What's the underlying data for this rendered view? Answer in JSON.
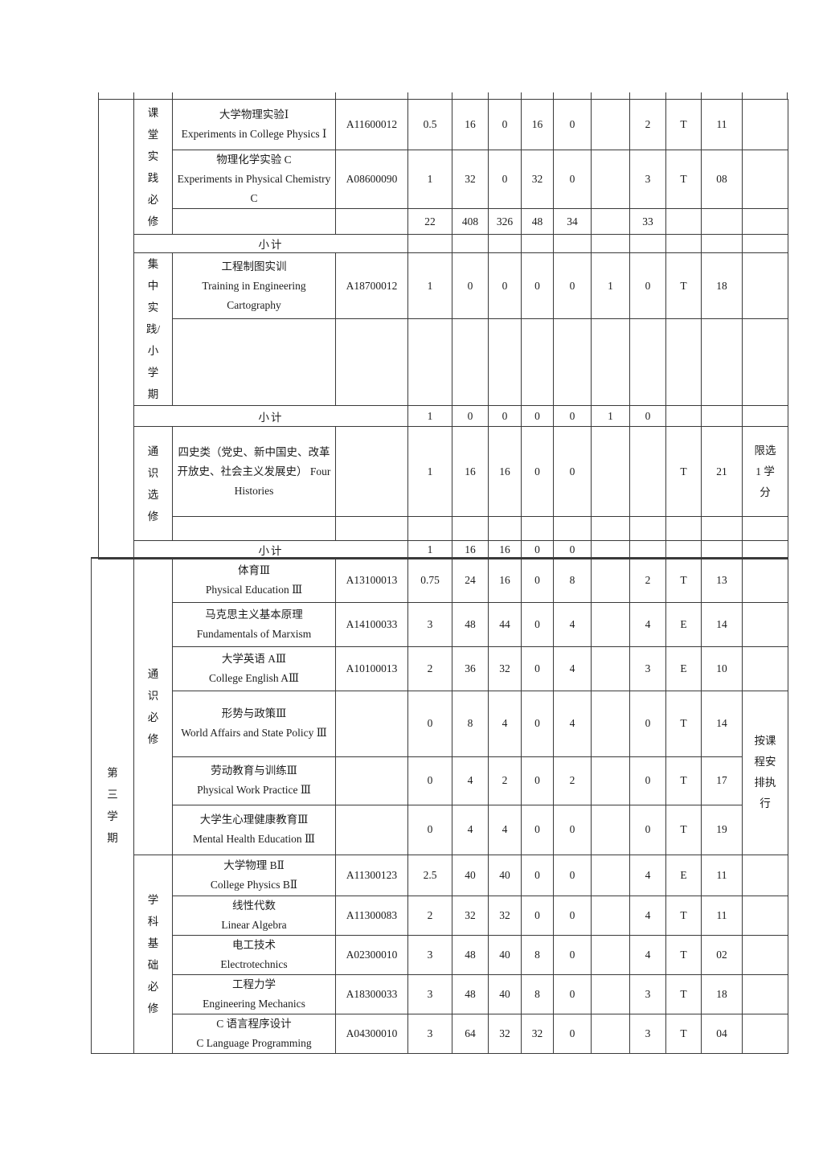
{
  "labels": {
    "subtotal": "小计"
  },
  "border_color": "#3a3a3a",
  "top": {
    "semester": "",
    "sections": [
      {
        "id": "classroom-practice-required",
        "category": "课\n堂\n实\n践\n必\n修",
        "courses": [
          {
            "name_zh": "大学物理实验Ⅰ",
            "name_en": "Experiments in College Physics Ⅰ",
            "code": "A11600012",
            "credits": "0.5",
            "total": "16",
            "lecture": "0",
            "experiment": "16",
            "practice": "0",
            "weeks": "",
            "weekly": "2",
            "exam": "T",
            "dept": "11",
            "note": ""
          },
          {
            "name_zh": "物理化学实验 C",
            "name_en": "Experiments in Physical Chemistry C",
            "code": "A08600090",
            "credits": "1",
            "total": "32",
            "lecture": "0",
            "experiment": "32",
            "practice": "0",
            "weeks": "",
            "weekly": "3",
            "exam": "T",
            "dept": "08",
            "note": ""
          }
        ],
        "totals": {
          "credits": "22",
          "total": "408",
          "lecture": "326",
          "experiment": "48",
          "practice": "34",
          "weeks": "",
          "weekly": "33",
          "exam": "",
          "dept": "",
          "note": ""
        },
        "subtotal": {
          "credits": "",
          "total": "",
          "lecture": "",
          "experiment": "",
          "practice": "",
          "weeks": "",
          "weekly": "",
          "exam": "",
          "dept": "",
          "note": ""
        }
      },
      {
        "id": "concentrated-practice-short-term",
        "category": "集\n中\n实\n践/\n小\n学\n期",
        "courses": [
          {
            "name_zh": "工程制图实训",
            "name_en": "Training in Engineering Cartography",
            "code": "A18700012",
            "credits": "1",
            "total": "0",
            "lecture": "0",
            "experiment": "0",
            "practice": "0",
            "weeks": "1",
            "weekly": "0",
            "exam": "T",
            "dept": "18",
            "note": ""
          }
        ],
        "subtotal": {
          "credits": "1",
          "total": "0",
          "lecture": "0",
          "experiment": "0",
          "practice": "0",
          "weeks": "1",
          "weekly": "0",
          "exam": "",
          "dept": "",
          "note": ""
        }
      },
      {
        "id": "general-elective",
        "category": "通\n识\n选\n修",
        "courses": [
          {
            "name_zh": "四史类（党史、新中国史、改革开放史、社会主义发展史）",
            "name_en": "Four Histories",
            "code": "",
            "credits": "1",
            "total": "16",
            "lecture": "16",
            "experiment": "0",
            "practice": "0",
            "weeks": "",
            "weekly": "",
            "exam": "T",
            "dept": "21",
            "note": "限选\n1 学\n分"
          }
        ],
        "subtotal": {
          "credits": "1",
          "total": "16",
          "lecture": "16",
          "experiment": "0",
          "practice": "0",
          "weeks": "",
          "weekly": "",
          "exam": "",
          "dept": "",
          "note": ""
        }
      }
    ]
  },
  "bottom": {
    "semester": "第\n三\n学\n期",
    "sections": [
      {
        "id": "general-required",
        "category": "通\n识\n必\n修",
        "merged_note": "按课\n程安\n排执\n行",
        "courses": [
          {
            "name_zh": "体育Ⅲ",
            "name_en": "Physical Education Ⅲ",
            "code": "A13100013",
            "credits": "0.75",
            "total": "24",
            "lecture": "16",
            "experiment": "0",
            "practice": "8",
            "weeks": "",
            "weekly": "2",
            "exam": "T",
            "dept": "13",
            "note": ""
          },
          {
            "name_zh": "马克思主义基本原理",
            "name_en": "Fundamentals of Marxism",
            "code": "A14100033",
            "credits": "3",
            "total": "48",
            "lecture": "44",
            "experiment": "0",
            "practice": "4",
            "weeks": "",
            "weekly": "4",
            "exam": "E",
            "dept": "14",
            "note": ""
          },
          {
            "name_zh": "大学英语 AⅢ",
            "name_en": "College English AⅢ",
            "code": "A10100013",
            "credits": "2",
            "total": "36",
            "lecture": "32",
            "experiment": "0",
            "practice": "4",
            "weeks": "",
            "weekly": "3",
            "exam": "E",
            "dept": "10",
            "note": ""
          },
          {
            "name_zh": "形势与政策Ⅲ",
            "name_en": "World Affairs and State Policy Ⅲ",
            "code": "",
            "credits": "0",
            "total": "8",
            "lecture": "4",
            "experiment": "0",
            "practice": "4",
            "weeks": "",
            "weekly": "0",
            "exam": "T",
            "dept": "14"
          },
          {
            "name_zh": "劳动教育与训练Ⅲ",
            "name_en": "Physical Work Practice Ⅲ",
            "code": "",
            "credits": "0",
            "total": "4",
            "lecture": "2",
            "experiment": "0",
            "practice": "2",
            "weeks": "",
            "weekly": "0",
            "exam": "T",
            "dept": "17"
          },
          {
            "name_zh": "大学生心理健康教育Ⅲ",
            "name_en": "Mental Health Education Ⅲ",
            "code": "",
            "credits": "0",
            "total": "4",
            "lecture": "4",
            "experiment": "0",
            "practice": "0",
            "weeks": "",
            "weekly": "0",
            "exam": "T",
            "dept": "19"
          }
        ]
      },
      {
        "id": "disciplinary-basic-required",
        "category": "学\n科\n基\n础\n必\n修",
        "courses": [
          {
            "name_zh": "大学物理 BⅡ",
            "name_en": "College Physics BⅡ",
            "code": "A11300123",
            "credits": "2.5",
            "total": "40",
            "lecture": "40",
            "experiment": "0",
            "practice": "0",
            "weeks": "",
            "weekly": "4",
            "exam": "E",
            "dept": "11",
            "note": ""
          },
          {
            "name_zh": "线性代数",
            "name_en": "Linear Algebra",
            "code": "A11300083",
            "credits": "2",
            "total": "32",
            "lecture": "32",
            "experiment": "0",
            "practice": "0",
            "weeks": "",
            "weekly": "4",
            "exam": "T",
            "dept": "11",
            "note": ""
          },
          {
            "name_zh": "电工技术",
            "name_en": "Electrotechnics",
            "code": "A02300010",
            "credits": "3",
            "total": "48",
            "lecture": "40",
            "experiment": "8",
            "practice": "0",
            "weeks": "",
            "weekly": "4",
            "exam": "T",
            "dept": "02",
            "note": ""
          },
          {
            "name_zh": "工程力学",
            "name_en": "Engineering Mechanics",
            "code": "A18300033",
            "credits": "3",
            "total": "48",
            "lecture": "40",
            "experiment": "8",
            "practice": "0",
            "weeks": "",
            "weekly": "3",
            "exam": "T",
            "dept": "18",
            "note": ""
          },
          {
            "name_zh": "C 语言程序设计",
            "name_en": "C Language Programming",
            "code": "A04300010",
            "credits": "3",
            "total": "64",
            "lecture": "32",
            "experiment": "32",
            "practice": "0",
            "weeks": "",
            "weekly": "3",
            "exam": "T",
            "dept": "04",
            "note": ""
          }
        ]
      }
    ]
  }
}
